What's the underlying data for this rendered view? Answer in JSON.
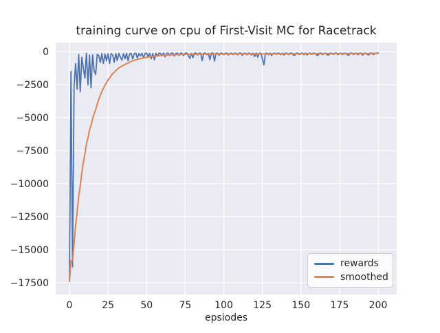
{
  "chart_data": {
    "type": "line",
    "title": "training curve on cpu of First-Visit MC for Racetrack",
    "xlabel": "epsiodes",
    "ylabel": "",
    "grid": true,
    "legend_position": "lower right",
    "style": {
      "figure_bg": "#ffffff",
      "plot_bg": "#eaeaf2",
      "grid_color": "#ffffff",
      "text_color": "#262626",
      "legend_bg": "rgba(255,255,255,0.8)",
      "legend_border": "#cccccc"
    },
    "x_axis": {
      "tick_values": [
        0,
        25,
        50,
        75,
        100,
        125,
        150,
        175,
        200
      ],
      "tick_labels": [
        "0",
        "25",
        "50",
        "75",
        "100",
        "125",
        "150",
        "175",
        "200"
      ],
      "range": [
        -10,
        210
      ]
    },
    "y_axis": {
      "tick_values": [
        0,
        -2500,
        -5000,
        -7500,
        -10000,
        -12500,
        -15000,
        -17500
      ],
      "tick_labels": [
        "0",
        "−2500",
        "−5000",
        "−7500",
        "−10000",
        "−12500",
        "−15000",
        "−17500"
      ],
      "range": [
        -18380,
        680
      ]
    },
    "series": [
      {
        "name": "rewards",
        "color": "#4C72B0",
        "x_start": 0,
        "x_step": 1,
        "values": [
          -17400,
          -1500,
          -16300,
          -2600,
          -900,
          -2850,
          -220,
          -3040,
          -430,
          -1250,
          -2000,
          -120,
          -2520,
          -260,
          -2730,
          -230,
          -1420,
          -1740,
          -200,
          -300,
          -820,
          -150,
          -900,
          -180,
          -700,
          -160,
          -900,
          -150,
          -250,
          -800,
          -150,
          -680,
          -130,
          -420,
          -650,
          -150,
          -540,
          -130,
          -690,
          -170,
          -140,
          -560,
          -150,
          -120,
          -480,
          -140,
          -330,
          -130,
          -450,
          -140,
          -110,
          -380,
          -140,
          -540,
          -150,
          -620,
          -130,
          -350,
          -120,
          -140,
          -310,
          -110,
          -390,
          -130,
          -120,
          -300,
          -120,
          -110,
          -340,
          -130,
          -120,
          -280,
          -110,
          -130,
          -310,
          -120,
          -110,
          -300,
          -510,
          -130,
          -470,
          -120,
          -110,
          -260,
          -130,
          -120,
          -690,
          -130,
          -110,
          -240,
          -130,
          -610,
          -120,
          -110,
          -720,
          -130,
          -120,
          -280,
          -110,
          -130,
          -240,
          -120,
          -110,
          -260,
          -130,
          -120,
          -230,
          -110,
          -130,
          -250,
          -120,
          -110,
          -290,
          -130,
          -120,
          -240,
          -110,
          -130,
          -260,
          -120,
          -380,
          -110,
          -420,
          -130,
          -120,
          -550,
          -1000,
          -140,
          -120,
          -240,
          -110,
          -300,
          -130,
          -120,
          -220,
          -110,
          -130,
          -240,
          -120,
          -260,
          -110,
          -130,
          -230,
          -120,
          -110,
          -250,
          -280,
          -120,
          -110,
          -230,
          -130,
          -120,
          -240,
          -110,
          -260,
          -130,
          -120,
          -220,
          -110,
          -130,
          -250,
          -280,
          -120,
          -110,
          -230,
          -130,
          -120,
          -240,
          -260,
          -110,
          -130,
          -220,
          -120,
          -110,
          -240,
          -130,
          -120,
          -230,
          -110,
          -130,
          -240,
          -280,
          -120,
          -110,
          -230,
          -130,
          -120,
          -240,
          -110,
          -130,
          -270,
          -120,
          -110,
          -230,
          -250,
          -120,
          -110,
          -230,
          -130,
          -120,
          -100
        ]
      },
      {
        "name": "smoothed",
        "color": "#DD8452",
        "points": [
          [
            0,
            -17400
          ],
          [
            1,
            -15810
          ],
          [
            2,
            -15860
          ],
          [
            3,
            -14530
          ],
          [
            4,
            -13170
          ],
          [
            5,
            -12140
          ],
          [
            6,
            -10950
          ],
          [
            7,
            -10160
          ],
          [
            8,
            -9190
          ],
          [
            9,
            -8400
          ],
          [
            10,
            -7760
          ],
          [
            11,
            -7000
          ],
          [
            12,
            -6550
          ],
          [
            13,
            -5920
          ],
          [
            14,
            -5600
          ],
          [
            15,
            -5060
          ],
          [
            16,
            -4700
          ],
          [
            17,
            -4400
          ],
          [
            18,
            -3980
          ],
          [
            19,
            -3610
          ],
          [
            20,
            -3330
          ],
          [
            21,
            -3010
          ],
          [
            22,
            -2800
          ],
          [
            23,
            -2540
          ],
          [
            24,
            -2360
          ],
          [
            25,
            -2140
          ],
          [
            26,
            -2020
          ],
          [
            27,
            -1830
          ],
          [
            28,
            -1670
          ],
          [
            29,
            -1580
          ],
          [
            30,
            -1440
          ],
          [
            32,
            -1230
          ],
          [
            34,
            -1100
          ],
          [
            36,
            -960
          ],
          [
            38,
            -870
          ],
          [
            40,
            -740
          ],
          [
            42,
            -660
          ],
          [
            44,
            -590
          ],
          [
            46,
            -530
          ],
          [
            48,
            -480
          ],
          [
            50,
            -430
          ],
          [
            55,
            -340
          ],
          [
            60,
            -285
          ],
          [
            65,
            -250
          ],
          [
            70,
            -225
          ],
          [
            75,
            -210
          ],
          [
            80,
            -200
          ],
          [
            90,
            -185
          ],
          [
            100,
            -175
          ],
          [
            110,
            -168
          ],
          [
            120,
            -168
          ],
          [
            125,
            -182
          ],
          [
            130,
            -176
          ],
          [
            140,
            -168
          ],
          [
            150,
            -162
          ],
          [
            160,
            -158
          ],
          [
            170,
            -154
          ],
          [
            180,
            -150
          ],
          [
            190,
            -148
          ],
          [
            200,
            -145
          ]
        ]
      }
    ]
  }
}
